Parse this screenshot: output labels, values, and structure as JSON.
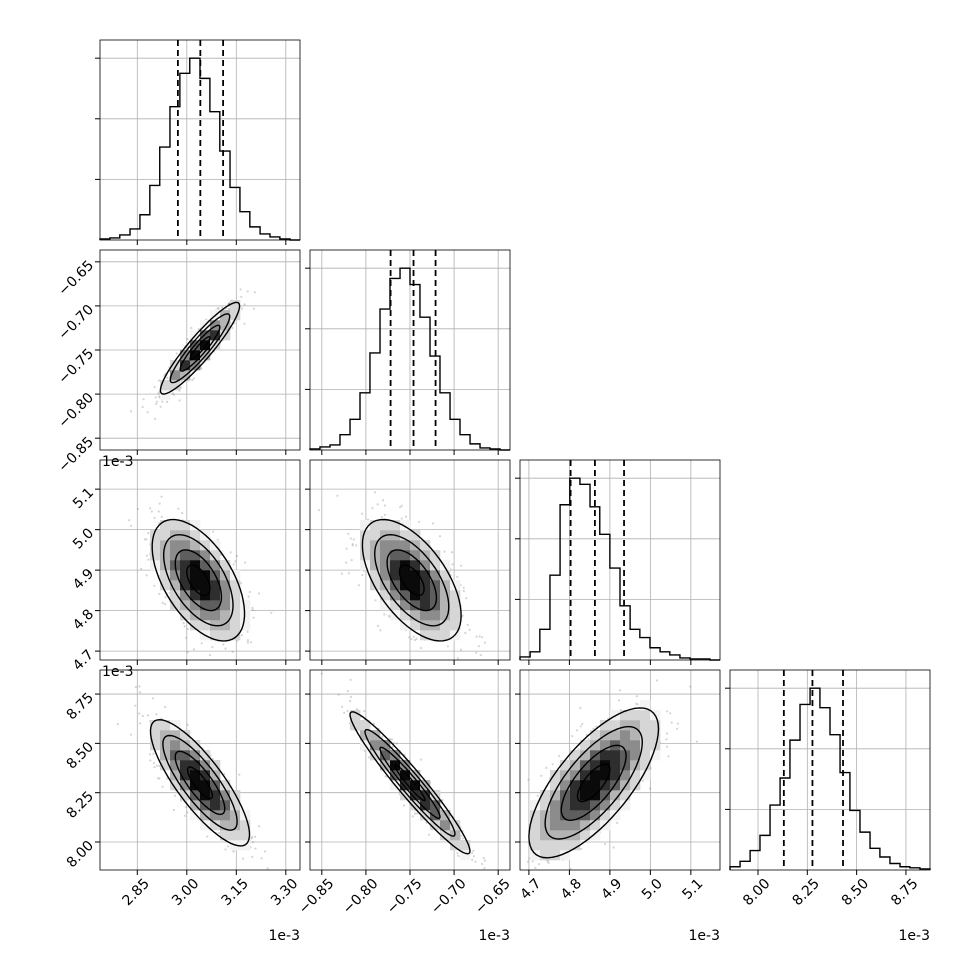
{
  "colors": {
    "background": "#ffffff",
    "grid": "#b0b0b0",
    "axis": "#000000",
    "scatter_points": "#888888",
    "density_shades": [
      "#f2f2f2",
      "#d6d6d6",
      "#b4b4b4",
      "#8c8c8c",
      "#5e5e5e",
      "#2e2e2e",
      "#0a0a0a"
    ]
  },
  "chart_data": {
    "type": "corner",
    "n_params": 4,
    "grid": true,
    "scale_note": "1e-3",
    "params": [
      {
        "ticks": [
          2.85,
          3.0,
          3.15,
          3.3
        ],
        "tick_labels": [
          "2.85",
          "3.00",
          "3.15",
          "3.30"
        ],
        "range": [
          2.737,
          3.343
        ]
      },
      {
        "ticks": [
          -0.85,
          -0.8,
          -0.75,
          -0.7,
          -0.65
        ],
        "tick_labels": [
          "−0.85",
          "−0.80",
          "−0.75",
          "−0.70",
          "−0.65"
        ],
        "range": [
          -0.8634,
          -0.6366
        ]
      },
      {
        "ticks": [
          4.7,
          4.8,
          4.9,
          5.0,
          5.1
        ],
        "tick_labels": [
          "4.7",
          "4.8",
          "4.9",
          "5.0",
          "5.1"
        ],
        "range": [
          4.678,
          5.172
        ]
      },
      {
        "ticks": [
          8.0,
          8.25,
          8.5,
          8.75
        ],
        "tick_labels": [
          "8.00",
          "8.25",
          "8.50",
          "8.75"
        ],
        "range": [
          7.858,
          8.872
        ]
      }
    ],
    "marginals": [
      {
        "quantiles": [
          2.973,
          3.041,
          3.11
        ],
        "hist_edges": [
          2.737,
          2.767,
          2.797,
          2.828,
          2.858,
          2.888,
          2.918,
          2.949,
          2.979,
          3.009,
          3.04,
          3.07,
          3.1,
          3.131,
          3.161,
          3.191,
          3.222,
          3.252,
          3.282,
          3.313,
          3.343
        ],
        "hist_counts": [
          1,
          2,
          5,
          11,
          25,
          54,
          92,
          132,
          165,
          180,
          160,
          127,
          88,
          52,
          28,
          13,
          6,
          3,
          1,
          0
        ]
      },
      {
        "quantiles": [
          -0.772,
          -0.746,
          -0.721
        ],
        "hist_edges": [
          -0.8634,
          -0.8521,
          -0.8407,
          -0.8294,
          -0.818,
          -0.8067,
          -0.7954,
          -0.784,
          -0.7727,
          -0.7613,
          -0.75,
          -0.7387,
          -0.7273,
          -0.716,
          -0.7046,
          -0.6933,
          -0.6819,
          -0.6706,
          -0.6593,
          -0.6479,
          -0.6366
        ],
        "hist_counts": [
          1,
          3,
          5,
          15,
          30,
          56,
          95,
          138,
          168,
          178,
          162,
          130,
          92,
          56,
          30,
          15,
          6,
          2,
          1,
          0
        ]
      },
      {
        "quantiles": [
          4.803,
          4.863,
          4.935
        ],
        "hist_edges": [
          4.678,
          4.703,
          4.727,
          4.752,
          4.777,
          4.801,
          4.826,
          4.851,
          4.875,
          4.9,
          4.925,
          4.95,
          4.974,
          4.999,
          5.024,
          5.048,
          5.073,
          5.098,
          5.122,
          5.147,
          5.172
        ],
        "hist_counts": [
          3,
          8,
          30,
          83,
          152,
          178,
          172,
          150,
          123,
          90,
          53,
          30,
          22,
          12,
          8,
          5,
          2,
          1,
          1,
          0
        ]
      },
      {
        "quantiles": [
          8.131,
          8.276,
          8.431
        ],
        "hist_edges": [
          7.858,
          7.909,
          7.96,
          8.01,
          8.061,
          8.112,
          8.162,
          8.213,
          8.264,
          8.314,
          8.365,
          8.416,
          8.466,
          8.517,
          8.568,
          8.618,
          8.669,
          8.72,
          8.77,
          8.821,
          8.872
        ],
        "hist_counts": [
          3,
          8,
          18,
          32,
          60,
          85,
          120,
          153,
          168,
          150,
          125,
          90,
          55,
          35,
          20,
          12,
          6,
          3,
          2,
          1
        ]
      }
    ],
    "pairs": [
      {
        "row": 1,
        "col": 0,
        "mean": [
          3.04,
          -0.748
        ],
        "sd": [
          0.06,
          0.026
        ],
        "corr": 0.92
      },
      {
        "row": 2,
        "col": 0,
        "mean": [
          3.035,
          4.875
        ],
        "sd": [
          0.07,
          0.075
        ],
        "corr": -0.55
      },
      {
        "row": 2,
        "col": 1,
        "mean": [
          -0.748,
          4.875
        ],
        "sd": [
          0.028,
          0.075
        ],
        "corr": -0.58
      },
      {
        "row": 3,
        "col": 0,
        "mean": [
          3.04,
          8.3
        ],
        "sd": [
          0.075,
          0.16
        ],
        "corr": -0.82
      },
      {
        "row": 3,
        "col": 1,
        "mean": [
          -0.75,
          8.3
        ],
        "sd": [
          0.034,
          0.18
        ],
        "corr": -0.96
      },
      {
        "row": 3,
        "col": 2,
        "mean": [
          4.86,
          8.3
        ],
        "sd": [
          0.08,
          0.19
        ],
        "corr": 0.72
      }
    ],
    "contour_levels_sigma": [
      0.5,
      1.0,
      1.5,
      2.0
    ]
  }
}
